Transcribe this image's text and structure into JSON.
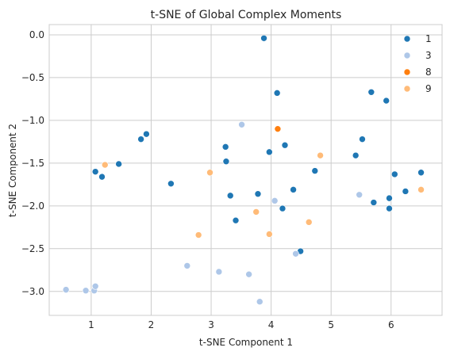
{
  "chart_data": {
    "type": "scatter",
    "title": "t-SNE of Global Complex Moments",
    "xlabel": "t-SNE Component 1",
    "ylabel": "t-SNE Component 2",
    "xlim": [
      0.3,
      6.85
    ],
    "ylim": [
      -3.28,
      0.12
    ],
    "xticks": [
      1,
      2,
      3,
      4,
      5,
      6
    ],
    "xtick_labels": [
      "1",
      "2",
      "3",
      "4",
      "5",
      "6"
    ],
    "yticks": [
      0.0,
      -0.5,
      -1.0,
      -1.5,
      -2.0,
      -2.5,
      -3.0
    ],
    "ytick_labels": [
      "0.0",
      "−0.5",
      "−1.0",
      "−1.5",
      "−2.0",
      "−2.5",
      "−3.0"
    ],
    "grid": true,
    "legend_position": "top-right",
    "series": [
      {
        "name": "1",
        "color": "#1f77b4",
        "points": [
          [
            3.88,
            -0.04
          ],
          [
            4.1,
            -0.68
          ],
          [
            5.67,
            -0.67
          ],
          [
            5.92,
            -0.77
          ],
          [
            1.92,
            -1.16
          ],
          [
            1.83,
            -1.22
          ],
          [
            1.46,
            -1.51
          ],
          [
            1.07,
            -1.6
          ],
          [
            1.18,
            -1.66
          ],
          [
            2.33,
            -1.74
          ],
          [
            3.24,
            -1.31
          ],
          [
            3.25,
            -1.48
          ],
          [
            3.32,
            -1.88
          ],
          [
            3.78,
            -1.86
          ],
          [
            3.41,
            -2.17
          ],
          [
            3.97,
            -1.37
          ],
          [
            4.23,
            -1.29
          ],
          [
            4.37,
            -1.81
          ],
          [
            4.19,
            -2.03
          ],
          [
            4.49,
            -2.53
          ],
          [
            4.73,
            -1.59
          ],
          [
            5.41,
            -1.41
          ],
          [
            5.52,
            -1.22
          ],
          [
            5.71,
            -1.96
          ],
          [
            5.97,
            -1.91
          ],
          [
            5.97,
            -2.03
          ],
          [
            6.06,
            -1.63
          ],
          [
            6.24,
            -1.83
          ],
          [
            6.5,
            -1.61
          ]
        ]
      },
      {
        "name": "3",
        "color": "#aec7e8",
        "points": [
          [
            3.51,
            -1.05
          ],
          [
            4.06,
            -1.94
          ],
          [
            5.47,
            -1.87
          ],
          [
            4.41,
            -2.56
          ],
          [
            2.6,
            -2.7
          ],
          [
            3.13,
            -2.77
          ],
          [
            3.63,
            -2.8
          ],
          [
            3.81,
            -3.12
          ],
          [
            0.58,
            -2.98
          ],
          [
            0.91,
            -2.99
          ],
          [
            1.05,
            -2.99
          ],
          [
            1.07,
            -2.94
          ]
        ]
      },
      {
        "name": "8",
        "color": "#ff7f0e",
        "points": [
          [
            4.11,
            -1.1
          ]
        ]
      },
      {
        "name": "9",
        "color": "#ffbb78",
        "points": [
          [
            1.23,
            -1.52
          ],
          [
            2.98,
            -1.61
          ],
          [
            4.82,
            -1.41
          ],
          [
            3.75,
            -2.07
          ],
          [
            2.79,
            -2.34
          ],
          [
            3.97,
            -2.33
          ],
          [
            4.63,
            -2.19
          ],
          [
            6.5,
            -1.81
          ]
        ]
      }
    ]
  }
}
